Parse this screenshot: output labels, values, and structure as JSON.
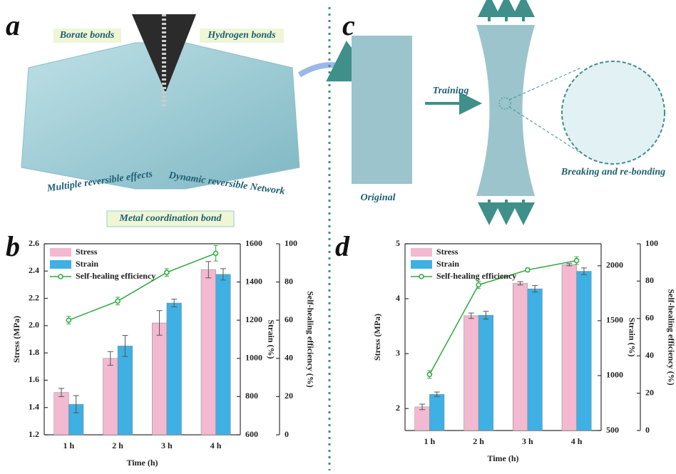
{
  "figure": {
    "panels": [
      "a",
      "b",
      "c",
      "d"
    ],
    "labels": {
      "borate": "Borate bonds",
      "hydrogen": "Hydrogen bonds",
      "multiple": "Multiple reversible effects",
      "dynamic": "Dynamic reversible Network",
      "metal": "Metal coordination bond",
      "training": "Training",
      "original": "Original",
      "breaking": "Breaking and re-bonding"
    }
  },
  "chart_data": [
    {
      "type": "combo",
      "xlabel": "Time (h)",
      "ylabel": "Stress (MPa)",
      "y2label": "Strain (%)",
      "y3label": "Self-healing efficiency (%)",
      "categories": [
        "1 h",
        "2 h",
        "3 h",
        "4 h"
      ],
      "ylim": [
        1.2,
        2.6
      ],
      "yticks": [
        1.2,
        1.4,
        1.6,
        1.8,
        {
          "value": 2,
          "label": "2.0"
        },
        2.2,
        2.4,
        2.6
      ],
      "y2lim": [
        600,
        1600
      ],
      "y2ticks": [
        600,
        800,
        1000,
        1200,
        1400,
        1600
      ],
      "y3lim": [
        0,
        100
      ],
      "y3ticks": [
        0,
        20,
        40,
        60,
        80,
        100
      ],
      "legend": "upper left",
      "series": [
        {
          "name": "Stress",
          "kind": "bar",
          "color": "#f2b9d0",
          "axis": "y",
          "values": [
            1.51,
            1.76,
            2.02,
            2.41
          ],
          "errors": [
            0.03,
            0.05,
            0.09,
            0.06
          ]
        },
        {
          "name": "Strain",
          "kind": "bar",
          "color": "#3fb0e3",
          "axis": "y2",
          "values": [
            760,
            1065,
            1290,
            1440
          ],
          "errors": [
            45,
            55,
            20,
            30
          ]
        },
        {
          "name": "Self-healing efficiency",
          "kind": "line",
          "color": "#2fa83c",
          "axis": "y3",
          "values": [
            60,
            70,
            85,
            95
          ],
          "errors": [
            2,
            2,
            2,
            4
          ]
        }
      ]
    },
    {
      "type": "combo",
      "xlabel": "Time (h)",
      "ylabel": "Stress (MPa)",
      "y2label": "Strain (%)",
      "y3label": "Self-healing efficiency (%)",
      "categories": [
        "1 h",
        "2 h",
        "3 h",
        "4 h"
      ],
      "ylim": [
        1.6,
        5
      ],
      "yticks": [
        2,
        3,
        4,
        5
      ],
      "y2lim": [
        500,
        2200
      ],
      "y2ticks": [
        500,
        1000,
        1500,
        2000
      ],
      "y3lim": [
        0,
        100
      ],
      "y3ticks": [
        0,
        20,
        40,
        60,
        80,
        100
      ],
      "legend": "upper left",
      "series": [
        {
          "name": "Stress",
          "kind": "bar",
          "color": "#f2b9d0",
          "axis": "y",
          "values": [
            2.03,
            3.69,
            4.28,
            4.62
          ],
          "errors": [
            0.05,
            0.05,
            0.03,
            0.02
          ]
        },
        {
          "name": "Strain",
          "kind": "bar",
          "color": "#3fb0e3",
          "axis": "y2",
          "values": [
            830,
            1550,
            1790,
            1950
          ],
          "errors": [
            20,
            35,
            30,
            30
          ]
        },
        {
          "name": "Self-healing efficiency",
          "kind": "line",
          "color": "#2fa83c",
          "axis": "y3",
          "values": [
            30,
            78,
            86,
            91
          ],
          "errors": [
            2,
            2,
            1,
            2
          ]
        }
      ]
    }
  ]
}
